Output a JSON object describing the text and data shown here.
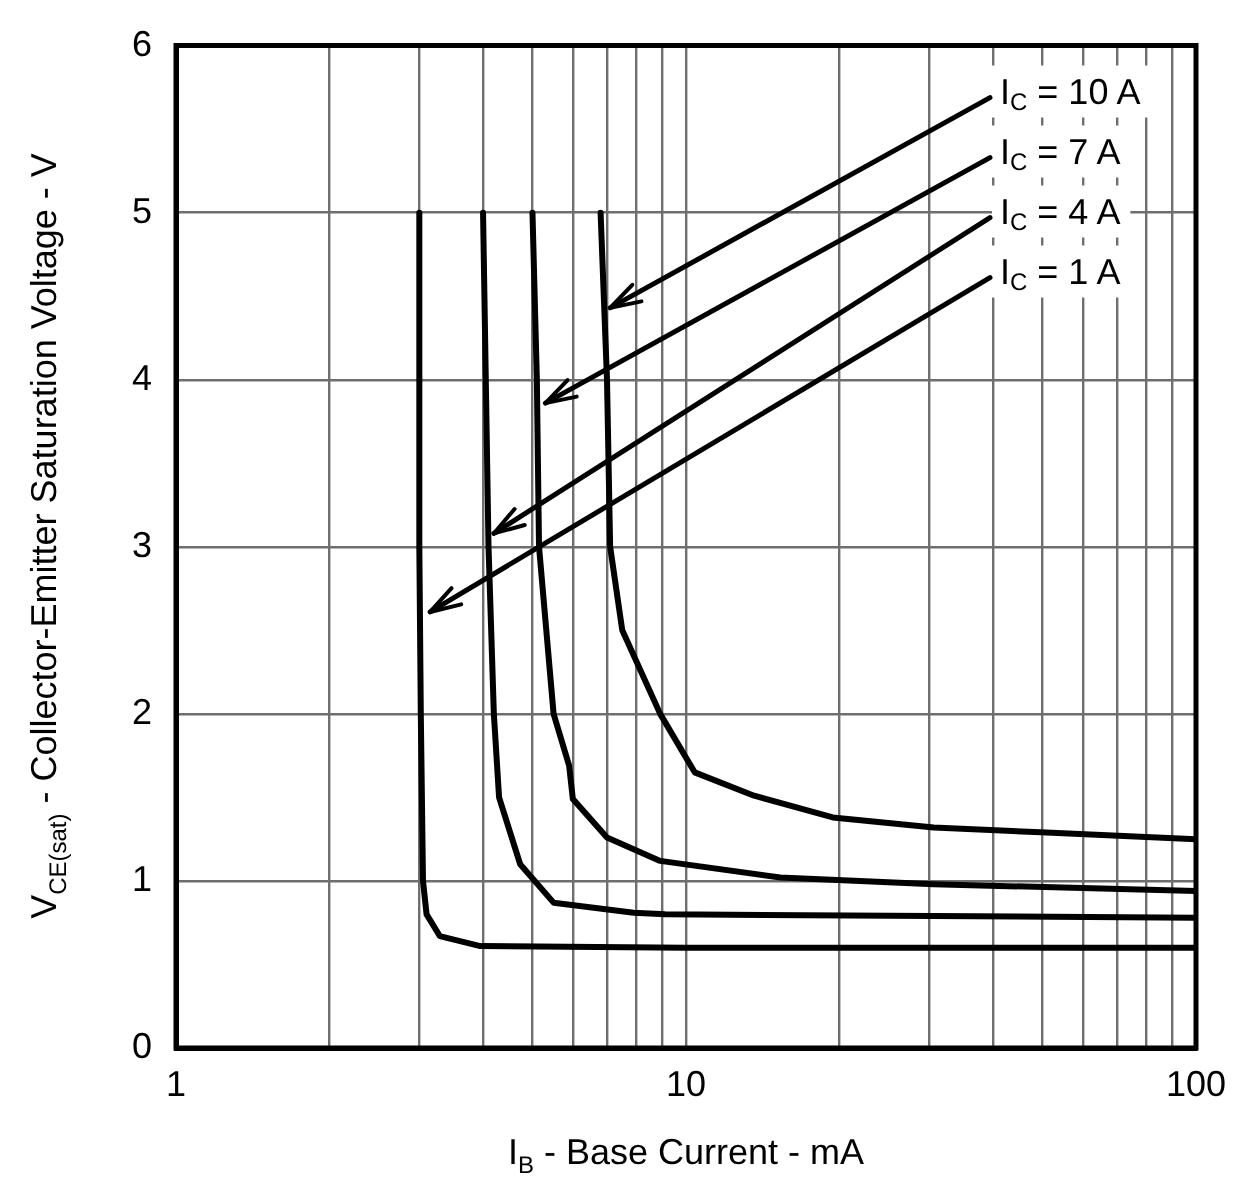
{
  "chart_data": {
    "type": "line",
    "xlabel": "I$_{B}$ - Base Current - mA",
    "ylabel": "V$_{CE(sat)}$ - Collector-Emitter Saturation Voltage - V",
    "log": "x",
    "xlim": [
      1,
      100
    ],
    "xticks": [
      1,
      {
        "value": 2,
        "label": null
      },
      {
        "value": 3,
        "label": null
      },
      {
        "value": 4,
        "label": null
      },
      {
        "value": 5,
        "label": null
      },
      {
        "value": 6,
        "label": null
      },
      {
        "value": 7,
        "label": null
      },
      {
        "value": 8,
        "label": null
      },
      {
        "value": 9,
        "label": null
      },
      10,
      {
        "value": 20,
        "label": null
      },
      {
        "value": 30,
        "label": null
      },
      {
        "value": 40,
        "label": null
      },
      {
        "value": 50,
        "label": null
      },
      {
        "value": 60,
        "label": null
      },
      {
        "value": 70,
        "label": null
      },
      {
        "value": 80,
        "label": null
      },
      {
        "value": 90,
        "label": null
      },
      100
    ],
    "ylim": [
      0,
      6
    ],
    "yticks": [
      0,
      1,
      2,
      3,
      4,
      5,
      6
    ],
    "grid": true,
    "series": [
      {
        "color": "#000000",
        "x": [
          3.0,
          3.0,
          3.02,
          3.05,
          3.1,
          3.29,
          3.95,
          10,
          100
        ],
        "values": [
          5,
          3,
          2,
          1.0,
          0.8,
          0.67,
          0.61,
          0.6,
          0.6
        ]
      },
      {
        "color": "#000000",
        "x": [
          4.0,
          4.1,
          4.2,
          4.3,
          4.73,
          5.5,
          7.9,
          9.1,
          100
        ],
        "values": [
          5,
          3,
          2,
          1.5,
          1.1,
          0.87,
          0.81,
          0.8,
          0.78
        ]
      },
      {
        "color": "#000000",
        "x": [
          5.0,
          5.1,
          5.15,
          5.5,
          5.9,
          6.0,
          7.0,
          8.9,
          15.3,
          30.6,
          100
        ],
        "values": [
          5,
          4,
          3,
          2,
          1.69,
          1.49,
          1.26,
          1.12,
          1.02,
          0.98,
          0.94
        ]
      },
      {
        "color": "#000000",
        "x": [
          6.8,
          7.0,
          7.1,
          7.5,
          8.9,
          10.4,
          13.6,
          19.4,
          30.6,
          50.9,
          100
        ],
        "values": [
          5,
          4,
          3,
          2.5,
          2,
          1.65,
          1.51,
          1.38,
          1.32,
          1.29,
          1.25
        ]
      }
    ],
    "annotations": [
      {
        "text": "I$_{C}$ = 10 A",
        "x": 7.1,
        "y": 4.43
      },
      {
        "text": "I$_{C}$ = 7 A",
        "x": 5.3,
        "y": 3.86
      },
      {
        "text": "I$_{C}$ = 4 A",
        "x": 4.2,
        "y": 3.08
      },
      {
        "text": "I$_{C}$ = 1 A",
        "x": 3.15,
        "y": 2.61
      }
    ]
  }
}
